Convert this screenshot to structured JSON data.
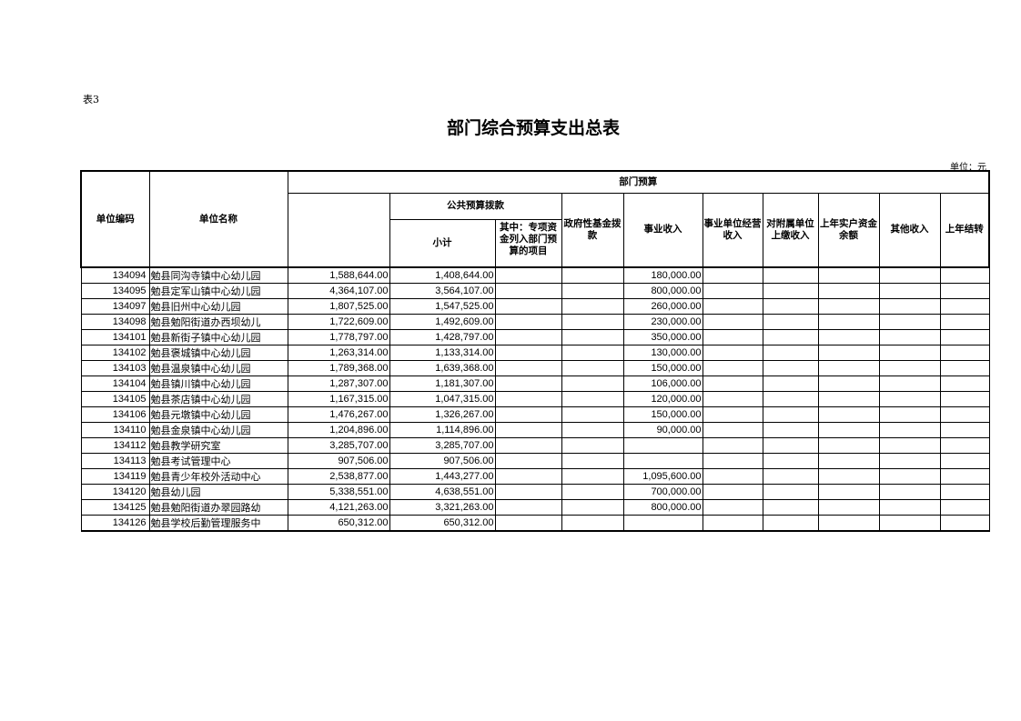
{
  "table_label": "表3",
  "title": "部门综合预算支出总表",
  "unit": "单位：元",
  "headers": {
    "code": "单位编码",
    "name": "单位名称",
    "dept_budget": "部门预算",
    "total": "",
    "public_budget": "公共预算拨款",
    "subtotal": "小计",
    "special": "其中：专项资金列入部门预算的项目",
    "gov_fund": "政府性基金拨款",
    "business_income": "事业收入",
    "operating_income": "事业单位经营收入",
    "affiliated_income": "对附属单位上缴收入",
    "prior_balance": "上年实户资金余额",
    "other_income": "其他收入",
    "carryover": "上年结转"
  },
  "rows": [
    {
      "code": "134094",
      "name": "勉县同沟寺镇中心幼儿园",
      "total": "1,588,644.00",
      "subtotal": "1,408,644.00",
      "business": "180,000.00"
    },
    {
      "code": "134095",
      "name": "勉县定军山镇中心幼儿园",
      "total": "4,364,107.00",
      "subtotal": "3,564,107.00",
      "business": "800,000.00"
    },
    {
      "code": "134097",
      "name": "勉县旧州中心幼儿园",
      "total": "1,807,525.00",
      "subtotal": "1,547,525.00",
      "business": "260,000.00"
    },
    {
      "code": "134098",
      "name": "勉县勉阳街道办西坝幼儿",
      "total": "1,722,609.00",
      "subtotal": "1,492,609.00",
      "business": "230,000.00"
    },
    {
      "code": "134101",
      "name": "勉县新街子镇中心幼儿园",
      "total": "1,778,797.00",
      "subtotal": "1,428,797.00",
      "business": "350,000.00"
    },
    {
      "code": "134102",
      "name": "勉县褒城镇中心幼儿园",
      "total": "1,263,314.00",
      "subtotal": "1,133,314.00",
      "business": "130,000.00"
    },
    {
      "code": "134103",
      "name": "勉县温泉镇中心幼儿园",
      "total": "1,789,368.00",
      "subtotal": "1,639,368.00",
      "business": "150,000.00"
    },
    {
      "code": "134104",
      "name": "勉县镇川镇中心幼儿园",
      "total": "1,287,307.00",
      "subtotal": "1,181,307.00",
      "business": "106,000.00"
    },
    {
      "code": "134105",
      "name": "勉县茶店镇中心幼儿园",
      "total": "1,167,315.00",
      "subtotal": "1,047,315.00",
      "business": "120,000.00"
    },
    {
      "code": "134106",
      "name": "勉县元墩镇中心幼儿园",
      "total": "1,476,267.00",
      "subtotal": "1,326,267.00",
      "business": "150,000.00"
    },
    {
      "code": "134110",
      "name": "勉县金泉镇中心幼儿园",
      "total": "1,204,896.00",
      "subtotal": "1,114,896.00",
      "business": "90,000.00"
    },
    {
      "code": "134112",
      "name": "勉县教学研究室",
      "total": "3,285,707.00",
      "subtotal": "3,285,707.00",
      "business": ""
    },
    {
      "code": "134113",
      "name": "勉县考试管理中心",
      "total": "907,506.00",
      "subtotal": "907,506.00",
      "business": ""
    },
    {
      "code": "134119",
      "name": "勉县青少年校外活动中心",
      "total": "2,538,877.00",
      "subtotal": "1,443,277.00",
      "business": "1,095,600.00"
    },
    {
      "code": "134120",
      "name": "勉县幼儿园",
      "total": "5,338,551.00",
      "subtotal": "4,638,551.00",
      "business": "700,000.00"
    },
    {
      "code": "134125",
      "name": "勉县勉阳街道办翠园路幼",
      "total": "4,121,263.00",
      "subtotal": "3,321,263.00",
      "business": "800,000.00"
    },
    {
      "code": "134126",
      "name": "勉县学校后勤管理服务中",
      "total": "650,312.00",
      "subtotal": "650,312.00",
      "business": ""
    }
  ]
}
